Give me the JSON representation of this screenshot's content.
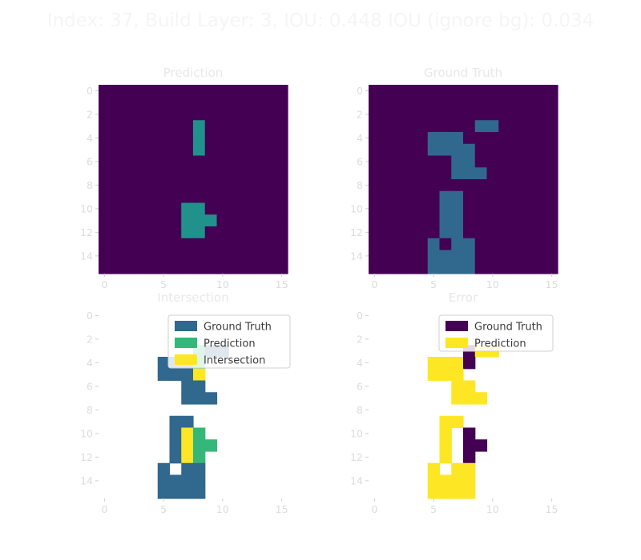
{
  "colors": {
    "background": "#440154",
    "ground_truth": "#31688e",
    "prediction": "#35b779",
    "intersection": "#fde725",
    "pred_mid": "#21918c",
    "error_gt": "#440154",
    "error_pred": "#fde725"
  },
  "chart_data": {
    "type": "heatmap",
    "title": "Index: 37, Build Layer: 3, IOU: 0.448 IOU (ignore bg): 0.034",
    "grid_size": 16,
    "x_ticks": [
      0,
      5,
      10,
      15
    ],
    "y_ticks": [
      0,
      2,
      4,
      6,
      8,
      10,
      12,
      14
    ],
    "prediction_cells": [
      [
        8,
        3
      ],
      [
        8,
        4
      ],
      [
        8,
        5
      ],
      [
        7,
        10
      ],
      [
        8,
        10
      ],
      [
        7,
        11
      ],
      [
        8,
        11
      ],
      [
        9,
        11
      ],
      [
        7,
        12
      ],
      [
        8,
        12
      ]
    ],
    "ground_truth_cells": [
      [
        9,
        3
      ],
      [
        10,
        3
      ],
      [
        5,
        4
      ],
      [
        6,
        4
      ],
      [
        7,
        4
      ],
      [
        5,
        5
      ],
      [
        6,
        5
      ],
      [
        7,
        5
      ],
      [
        8,
        5
      ],
      [
        7,
        6
      ],
      [
        8,
        6
      ],
      [
        7,
        7
      ],
      [
        8,
        7
      ],
      [
        9,
        7
      ],
      [
        6,
        9
      ],
      [
        7,
        9
      ],
      [
        6,
        10
      ],
      [
        7,
        10
      ],
      [
        6,
        11
      ],
      [
        7,
        11
      ],
      [
        6,
        12
      ],
      [
        7,
        12
      ],
      [
        5,
        13
      ],
      [
        7,
        13
      ],
      [
        8,
        13
      ],
      [
        5,
        14
      ],
      [
        6,
        14
      ],
      [
        7,
        14
      ],
      [
        8,
        14
      ],
      [
        5,
        15
      ],
      [
        6,
        15
      ],
      [
        7,
        15
      ],
      [
        8,
        15
      ]
    ],
    "panels": [
      {
        "key": "prediction",
        "title": "Prediction",
        "legend": []
      },
      {
        "key": "ground_truth",
        "title": "Ground Truth",
        "legend": []
      },
      {
        "key": "intersection",
        "title": "Intersection",
        "legend": [
          "Ground Truth",
          "Prediction",
          "Intersection"
        ]
      },
      {
        "key": "error",
        "title": "Error",
        "legend": [
          "Ground Truth",
          "Prediction"
        ]
      }
    ]
  }
}
